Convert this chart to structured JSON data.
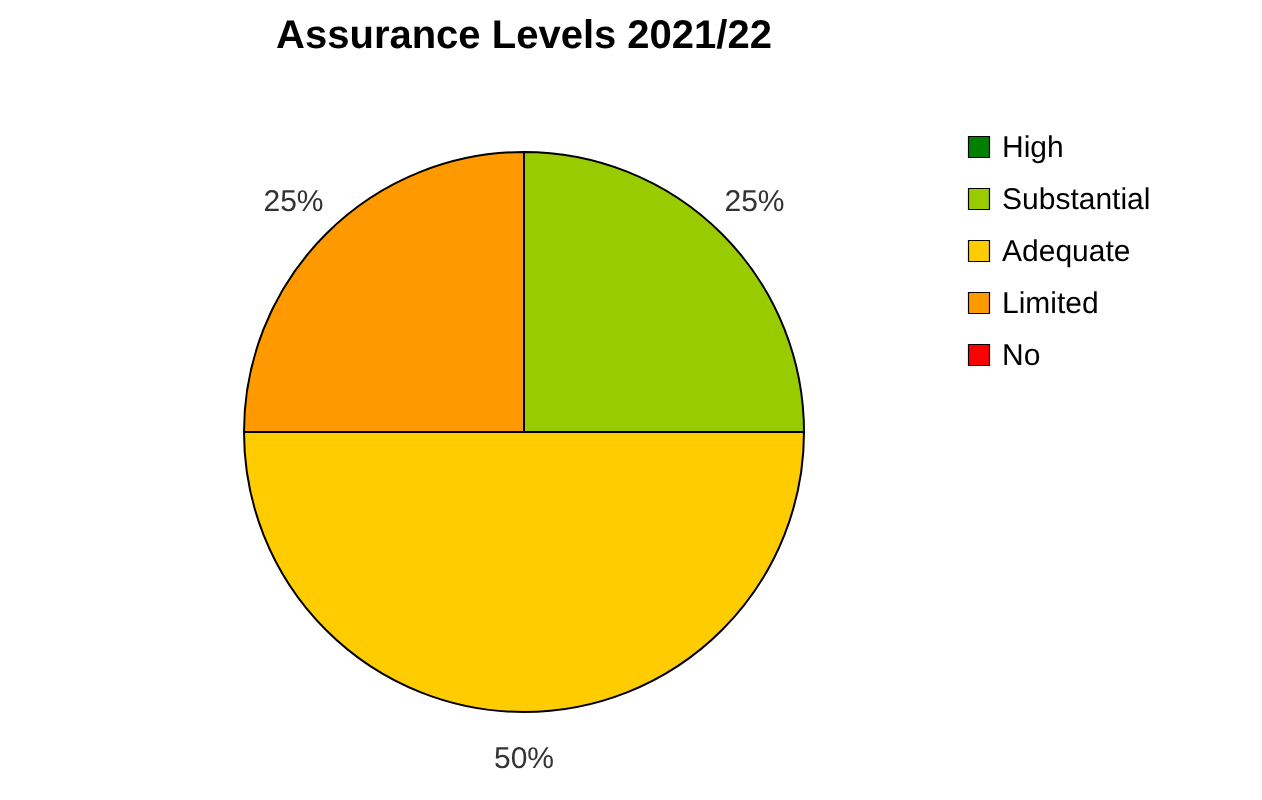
{
  "chart_data": {
    "type": "pie",
    "title": "Assurance Levels 2021/22",
    "categories": [
      "High",
      "Substantial",
      "Adequate",
      "Limited",
      "No"
    ],
    "values": [
      0,
      25,
      50,
      25,
      0
    ],
    "colors": [
      "#008000",
      "#99cc00",
      "#ffcc00",
      "#ff9900",
      "#ff0000"
    ],
    "value_labels": [
      null,
      "25%",
      "50%",
      "25%",
      null
    ],
    "legend": "right"
  }
}
